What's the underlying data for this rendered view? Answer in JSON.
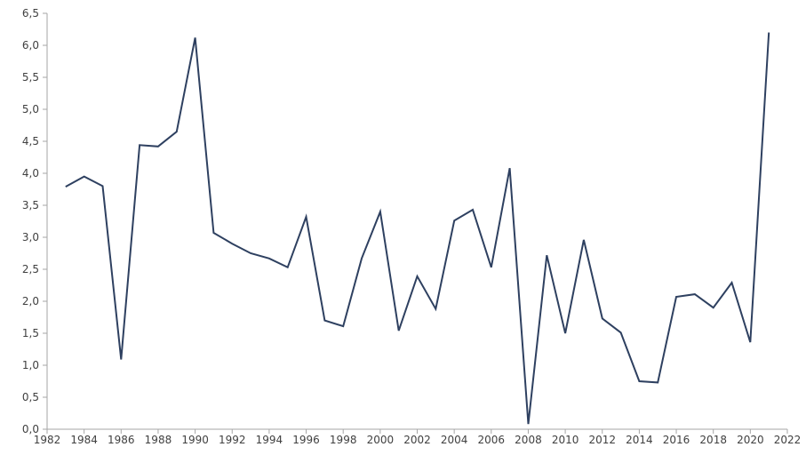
{
  "chart_data": {
    "type": "line",
    "title": "",
    "xlabel": "",
    "ylabel": "",
    "xlim": [
      1982,
      2022
    ],
    "ylim": [
      0,
      6.5
    ],
    "grid": false,
    "legend": "none",
    "x_ticks": [
      "1982",
      "1984",
      "1986",
      "1988",
      "1990",
      "1992",
      "1994",
      "1996",
      "1998",
      "2000",
      "2002",
      "2004",
      "2006",
      "2008",
      "2010",
      "2012",
      "2014",
      "2016",
      "2018",
      "2020",
      "2022"
    ],
    "y_ticks": [
      "0,0",
      "0,5",
      "1,0",
      "1,5",
      "2,0",
      "2,5",
      "3,0",
      "3,5",
      "4,0",
      "4,5",
      "5,0",
      "5,5",
      "6,0",
      "6,5"
    ],
    "series": [
      {
        "color": "#2e4060",
        "x": [
          1983,
          1984,
          1985,
          1986,
          1987,
          1988,
          1989,
          1990,
          1991,
          1992,
          1993,
          1994,
          1995,
          1996,
          1997,
          1998,
          1999,
          2000,
          2001,
          2002,
          2003,
          2004,
          2005,
          2006,
          2007,
          2008,
          2009,
          2010,
          2011,
          2012,
          2013,
          2014,
          2015,
          2016,
          2017,
          2018,
          2019,
          2020,
          2021
        ],
        "values": [
          3.79,
          3.95,
          3.8,
          1.09,
          4.44,
          4.42,
          4.65,
          6.12,
          3.07,
          2.9,
          2.75,
          2.67,
          2.53,
          3.32,
          1.7,
          1.61,
          2.67,
          3.4,
          1.54,
          2.39,
          1.88,
          3.26,
          3.43,
          2.53,
          4.08,
          0.08,
          2.72,
          1.5,
          2.96,
          1.73,
          1.51,
          0.75,
          0.73,
          2.07,
          2.11,
          1.9,
          2.29,
          1.36,
          6.2
        ]
      }
    ]
  }
}
